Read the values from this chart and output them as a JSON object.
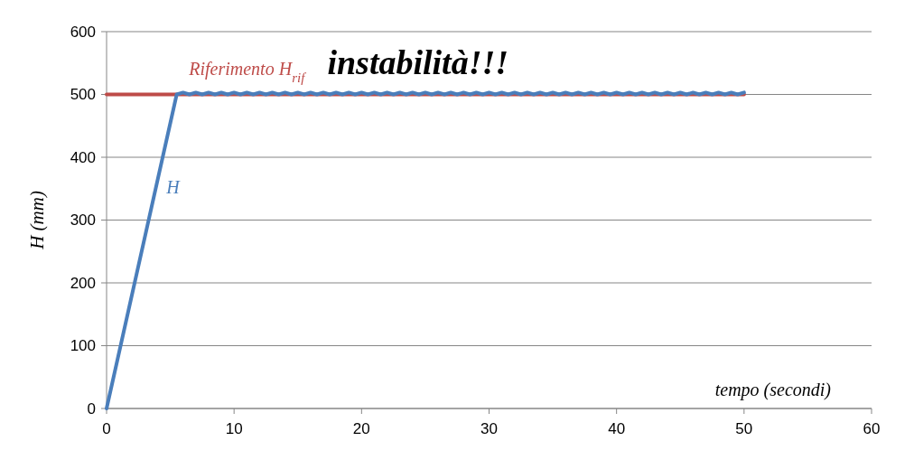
{
  "chart_data": {
    "type": "line",
    "ylabel": "H  (mm)",
    "xlabel": "tempo (secondi)",
    "xlim": [
      0,
      60
    ],
    "xticks": [
      0,
      10,
      20,
      30,
      40,
      50,
      60
    ],
    "ylim": [
      0,
      600
    ],
    "yticks": [
      0,
      100,
      200,
      300,
      400,
      500,
      600
    ],
    "grid": "y",
    "marker": "none",
    "annotations": [
      "instabilità!!!"
    ],
    "series": [
      {
        "name": "H",
        "color": "#4a7ebb",
        "x": [
          0,
          5.5,
          6,
          6.5,
          7,
          7.5,
          8,
          8.5,
          9,
          9.5,
          10,
          10.5,
          11,
          11.5,
          12,
          12.5,
          13,
          13.5,
          14,
          14.5,
          15,
          15.5,
          16,
          16.5,
          17,
          17.5,
          18,
          18.5,
          19,
          19.5,
          20,
          20.5,
          21,
          21.5,
          22,
          22.5,
          23,
          23.5,
          24,
          24.5,
          25,
          25.5,
          26,
          26.5,
          27,
          27.5,
          28,
          28.5,
          29,
          29.5,
          30,
          30.5,
          31,
          31.5,
          32,
          32.5,
          33,
          33.5,
          34,
          34.5,
          35,
          35.5,
          36,
          36.5,
          37,
          37.5,
          38,
          38.5,
          39,
          39.5,
          40,
          40.5,
          41,
          41.5,
          42,
          42.5,
          43,
          43.5,
          44,
          44.5,
          45,
          45.5,
          46,
          46.5,
          47,
          47.5,
          48,
          48.5,
          49,
          49.5,
          50
        ],
        "values": [
          0,
          500,
          503,
          500,
          503,
          500,
          503,
          500,
          503,
          500,
          503,
          500,
          503,
          500,
          503,
          500,
          503,
          500,
          503,
          500,
          503,
          500,
          503,
          500,
          503,
          500,
          503,
          500,
          503,
          500,
          503,
          500,
          503,
          500,
          503,
          500,
          503,
          500,
          503,
          500,
          503,
          500,
          503,
          500,
          503,
          500,
          503,
          500,
          503,
          500,
          503,
          500,
          503,
          500,
          503,
          500,
          503,
          500,
          503,
          500,
          503,
          500,
          503,
          500,
          503,
          500,
          503,
          500,
          503,
          500,
          503,
          500,
          503,
          500,
          503,
          500,
          503,
          500,
          503,
          500,
          503,
          500,
          503,
          500,
          503,
          500,
          503,
          500,
          503,
          500,
          503
        ]
      },
      {
        "name": "Riferimento  H$_{rif}$",
        "color": "#be4b48",
        "x": [
          0,
          50
        ],
        "values": [
          500,
          500
        ]
      }
    ]
  }
}
